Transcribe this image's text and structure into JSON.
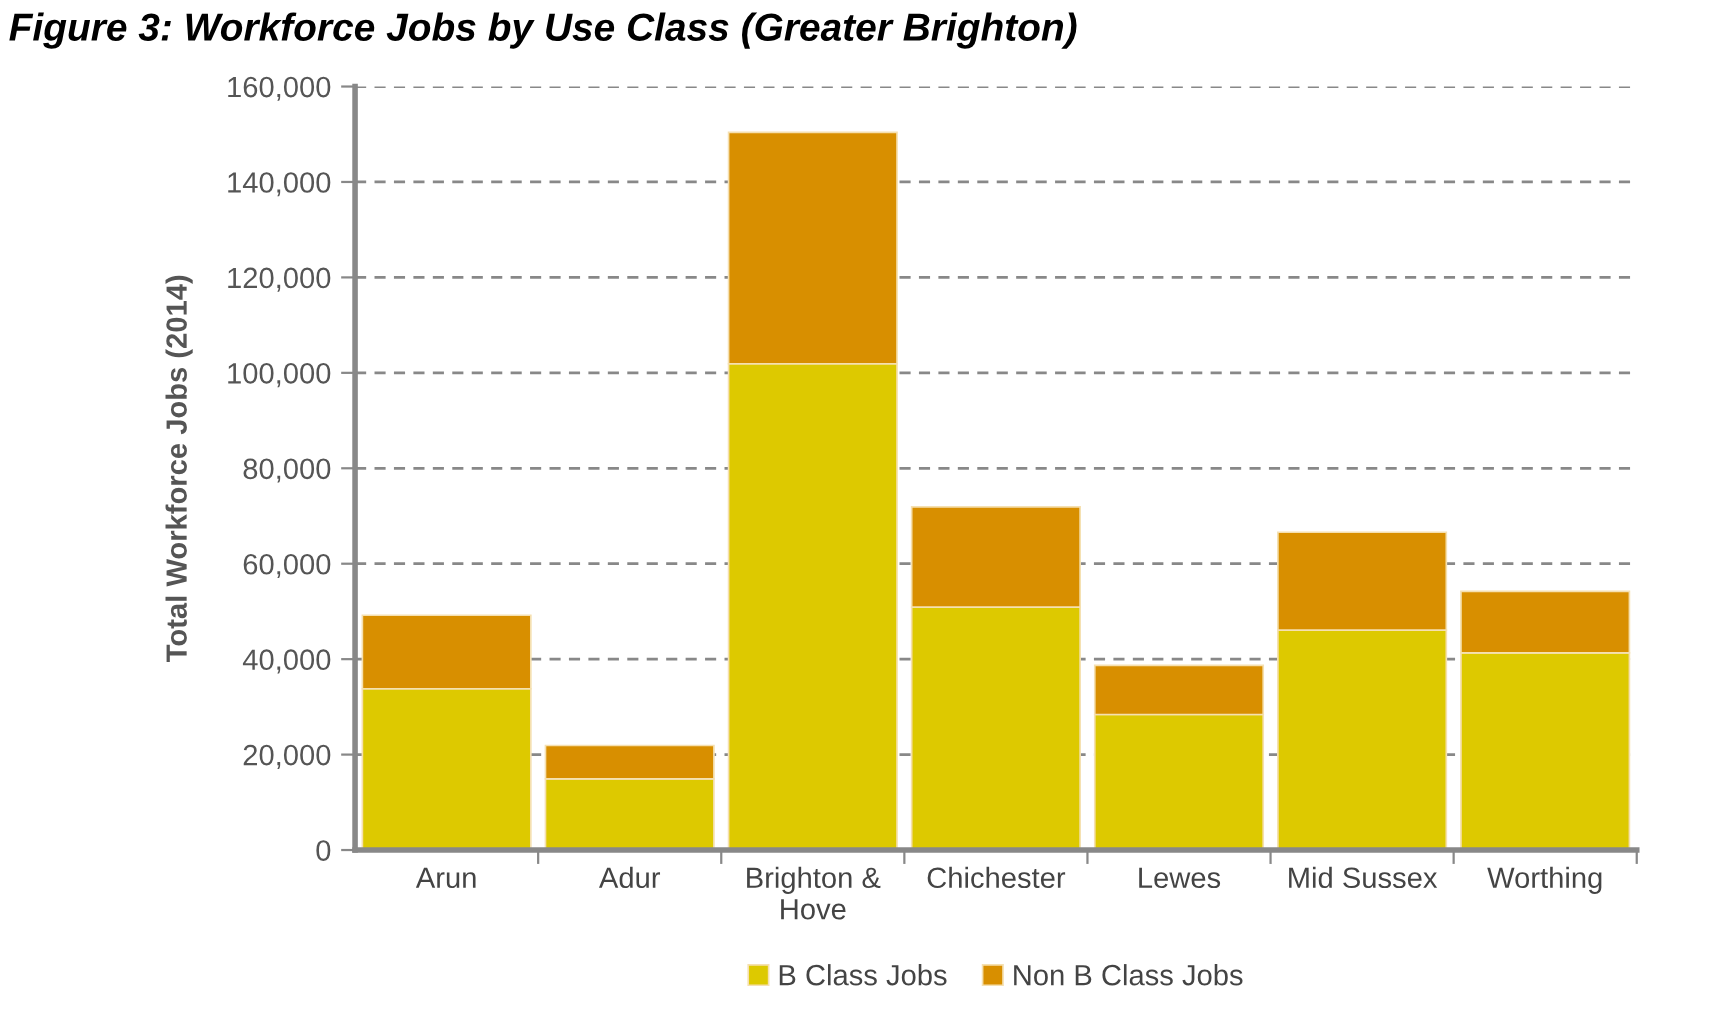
{
  "chart_data": {
    "type": "bar",
    "title": "Figure 3: Workforce Jobs by Use Class (Greater Brighton)",
    "ylabel": "Total Workforce Jobs (2014)",
    "categories": [
      "Arun",
      "Adur",
      "Brighton &\nHove",
      "Chichester",
      "Lewes",
      "Mid Sussex",
      "Worthing"
    ],
    "series": [
      {
        "name": "B Class Jobs",
        "color": "#ddc900",
        "values": [
          33800,
          14900,
          101900,
          50900,
          28400,
          46100,
          41300
        ]
      },
      {
        "name": "Non B Class Jobs",
        "color": "#d88f00",
        "values": [
          15400,
          7000,
          48500,
          21000,
          10300,
          20500,
          12900
        ]
      }
    ],
    "stacked": true,
    "ylim": [
      0,
      160000
    ],
    "yticks": [
      {
        "value": 0,
        "label": "0"
      },
      {
        "value": 20000,
        "label": "20,000"
      },
      {
        "value": 40000,
        "label": "40,000"
      },
      {
        "value": 60000,
        "label": "60,000"
      },
      {
        "value": 80000,
        "label": "80,000"
      },
      {
        "value": 100000,
        "label": "100,000"
      },
      {
        "value": 120000,
        "label": "120,000"
      },
      {
        "value": 140000,
        "label": "140,000"
      },
      {
        "value": 160000,
        "label": "160,000"
      }
    ],
    "grid": "y",
    "legend": "bottom"
  }
}
